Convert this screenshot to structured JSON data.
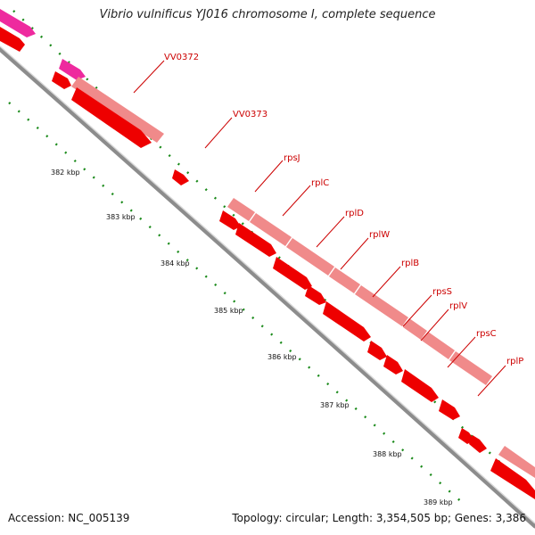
{
  "title": "Vibrio vulnificus YJ016 chromosome I, complete sequence",
  "footer": {
    "accession": "Accession: NC_005139",
    "summary": "Topology: circular; Length: 3,354,505 bp; Genes: 3,386"
  },
  "colors": {
    "backbone": "#8c8c8c",
    "cds": "#ee0000",
    "gene_bar": "#f08a8a",
    "other_feature": "#ee2a9e",
    "ticks": "#1a8a1a",
    "labels": "#cc0000"
  },
  "scale_labels": [
    "382 kbp",
    "383 kbp",
    "384 kbp",
    "385 kbp",
    "386 kbp",
    "387 kbp",
    "388 kbp",
    "389 kbp"
  ],
  "gene_labels": [
    "VV0372",
    "VV0373",
    "rpsJ",
    "rplC",
    "rplD",
    "rplW",
    "rplB",
    "rpsS",
    "rplV",
    "rpsC",
    "rplP"
  ]
}
